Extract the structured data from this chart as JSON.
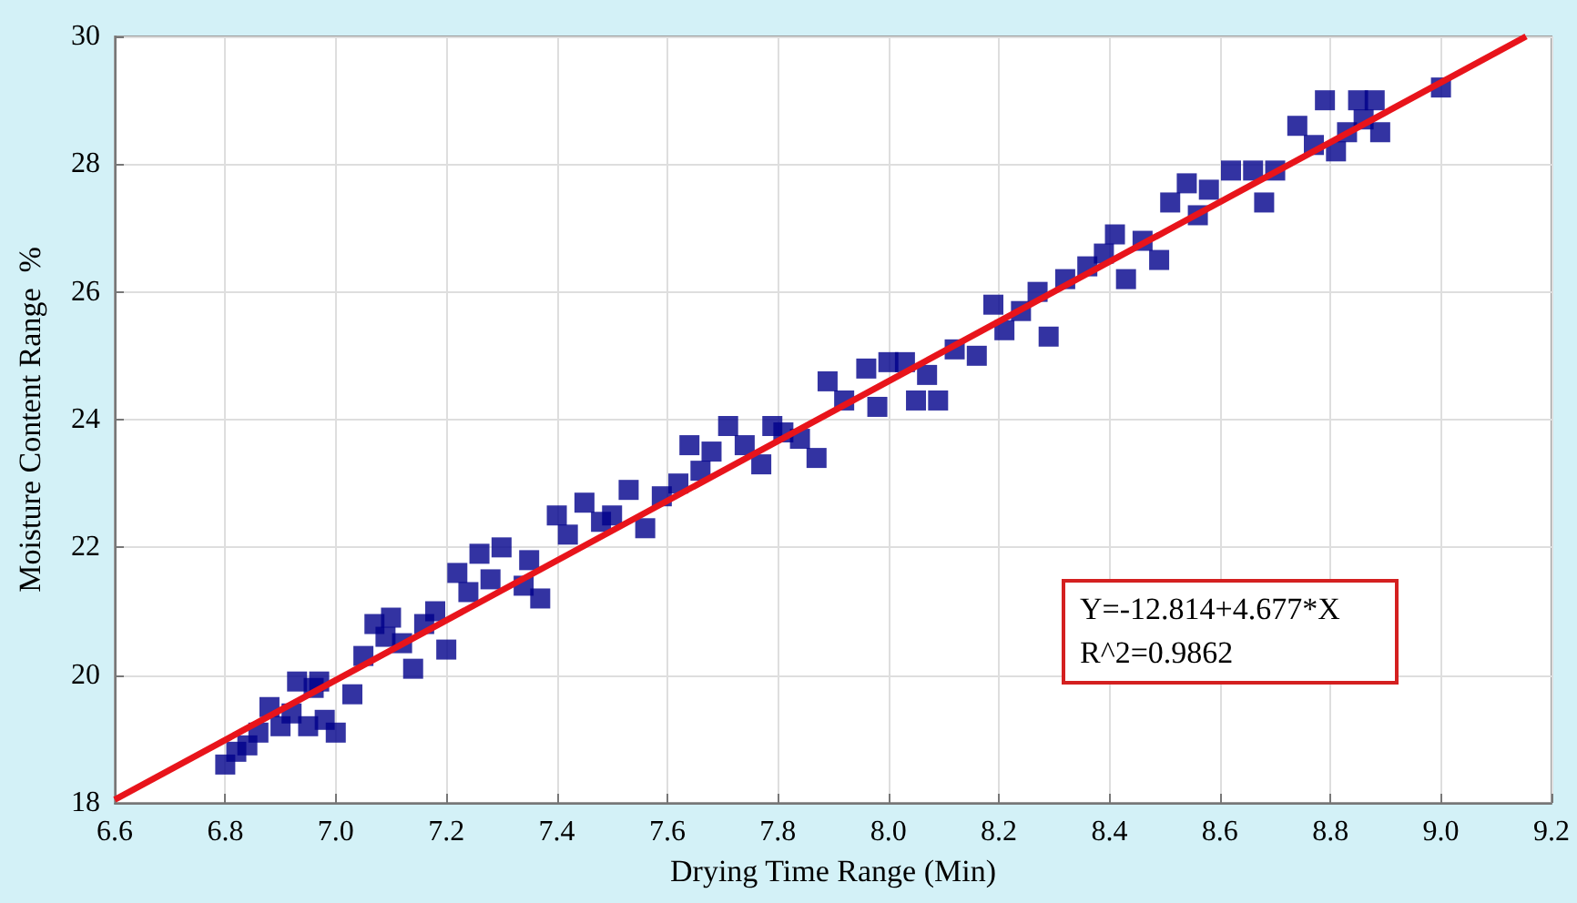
{
  "chart_data": {
    "type": "scatter",
    "xlabel": "Drying Time Range (Min)",
    "ylabel": "Moisture Content Range  %",
    "xlim": [
      6.6,
      9.2
    ],
    "xticks": [
      6.6,
      6.8,
      {
        "value": 7,
        "label": "7.0"
      },
      7.2,
      7.4,
      7.6,
      7.8,
      {
        "value": 8,
        "label": "8.0"
      },
      8.2,
      8.4,
      8.6,
      8.8,
      {
        "value": 9,
        "label": "9.0"
      },
      9.2
    ],
    "ylim": [
      18,
      30
    ],
    "yticks": [
      18,
      20,
      22,
      24,
      26,
      28,
      30
    ],
    "grid": true,
    "marker": "square",
    "annotations": [
      "Y=-12.814+4.677*X",
      "R^2=0.9862"
    ],
    "series": [
      {
        "color": "#00008b",
        "x": [
          6.8,
          6.82,
          6.84,
          6.86,
          6.88,
          6.9,
          6.92,
          6.93,
          6.95,
          6.96,
          6.97,
          6.98,
          7.0,
          7.03,
          7.05,
          7.07,
          7.09,
          7.1,
          7.12,
          7.14,
          7.16,
          7.18,
          7.2,
          7.22,
          7.24,
          7.26,
          7.28,
          7.3,
          7.34,
          7.35,
          7.37,
          7.4,
          7.42,
          7.45,
          7.48,
          7.5,
          7.53,
          7.56,
          7.59,
          7.62,
          7.64,
          7.66,
          7.68,
          7.71,
          7.74,
          7.77,
          7.79,
          7.81,
          7.84,
          7.87,
          7.89,
          7.92,
          7.96,
          7.98,
          8.0,
          8.03,
          8.05,
          8.07,
          8.09,
          8.12,
          8.16,
          8.19,
          8.21,
          8.24,
          8.27,
          8.29,
          8.32,
          8.36,
          8.39,
          8.41,
          8.43,
          8.46,
          8.49,
          8.51,
          8.54,
          8.56,
          8.58,
          8.62,
          8.66,
          8.68,
          8.7,
          8.74,
          8.77,
          8.79,
          8.81,
          8.83,
          8.85,
          8.86,
          8.88,
          8.89,
          9.0
        ],
        "values": [
          18.6,
          18.8,
          18.9,
          19.1,
          19.5,
          19.2,
          19.4,
          19.9,
          19.2,
          19.8,
          19.9,
          19.3,
          19.1,
          19.7,
          20.3,
          20.8,
          20.6,
          20.9,
          20.5,
          20.1,
          20.8,
          21.0,
          20.4,
          21.6,
          21.3,
          21.9,
          21.5,
          22.0,
          21.4,
          21.8,
          21.2,
          22.5,
          22.2,
          22.7,
          22.4,
          22.5,
          22.9,
          22.3,
          22.8,
          23.0,
          23.6,
          23.2,
          23.5,
          23.9,
          23.6,
          23.3,
          23.9,
          23.8,
          23.7,
          23.4,
          24.6,
          24.3,
          24.8,
          24.2,
          24.9,
          24.9,
          24.3,
          24.7,
          24.3,
          25.1,
          25.0,
          25.8,
          25.4,
          25.7,
          26.0,
          25.3,
          26.2,
          26.4,
          26.6,
          26.9,
          26.2,
          26.8,
          26.5,
          27.4,
          27.7,
          27.2,
          27.6,
          27.9,
          27.9,
          27.4,
          27.9,
          28.6,
          28.3,
          29.0,
          28.2,
          28.5,
          29.0,
          28.7,
          29.0,
          28.5,
          29.2
        ]
      },
      {
        "type": "line",
        "color": "#e8141b",
        "marker": "none",
        "x": [
          6.6,
          9.154
        ],
        "values": [
          18.05,
          30
        ]
      }
    ]
  }
}
